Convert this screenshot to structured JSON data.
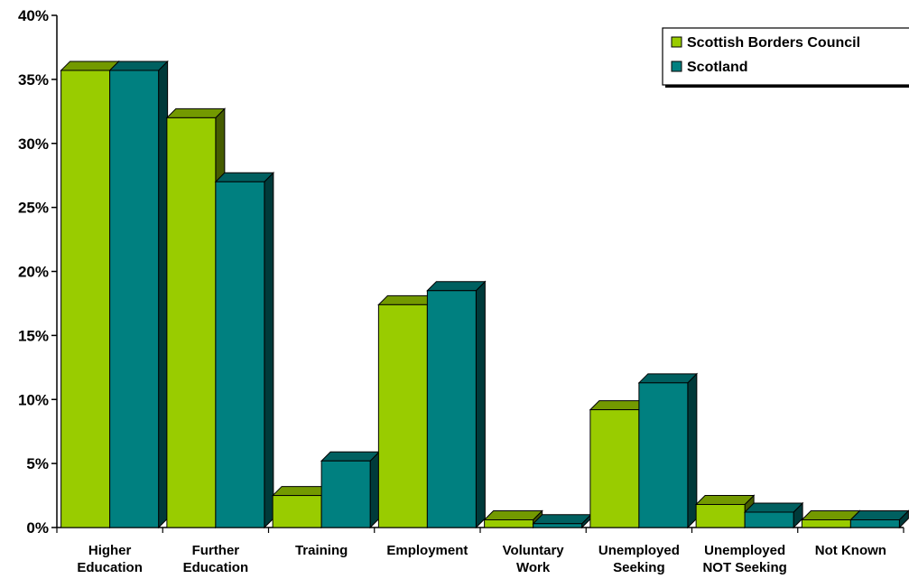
{
  "chart_data": {
    "type": "bar",
    "title": "",
    "xlabel": "",
    "ylabel": "",
    "ylim": [
      0,
      40
    ],
    "yticks": [
      "0%",
      "5%",
      "10%",
      "15%",
      "20%",
      "25%",
      "30%",
      "35%",
      "40%"
    ],
    "categories": [
      [
        "Higher",
        "Education"
      ],
      [
        "Further",
        "Education"
      ],
      [
        "Training"
      ],
      [
        "Employment"
      ],
      [
        "Voluntary",
        "Work"
      ],
      [
        "Unemployed",
        "Seeking"
      ],
      [
        "Unemployed",
        "NOT Seeking"
      ],
      [
        "Not Known"
      ]
    ],
    "series": [
      {
        "name": "Scottish Borders Council",
        "color": "#99cc00",
        "values": [
          35.7,
          32.0,
          2.5,
          17.4,
          0.6,
          9.2,
          1.8,
          0.6
        ]
      },
      {
        "name": "Scotland",
        "color": "#008080",
        "values": [
          35.7,
          27.0,
          5.2,
          18.5,
          0.3,
          11.3,
          1.2,
          0.6
        ]
      }
    ],
    "legend_position": "top-right",
    "grid": false,
    "style": "3d-clustered-bar"
  }
}
